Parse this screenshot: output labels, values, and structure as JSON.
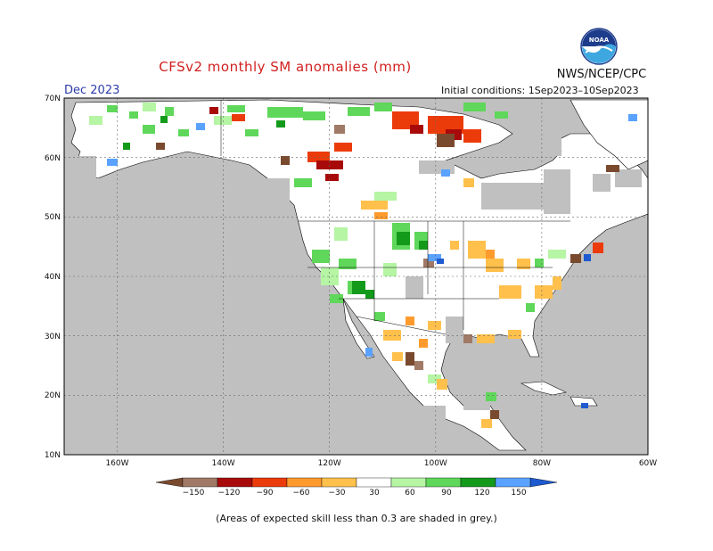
{
  "header": {
    "title": "CFSv2 monthly SM anomalies (mm)",
    "agency": "NWS/NCEP/CPC",
    "month": "Dec 2023",
    "initial_conditions": "Initial conditions: 1Sep2023–10Sep2023",
    "logo_text": "NOAA"
  },
  "map": {
    "lon_labels": [
      "160W",
      "140W",
      "120W",
      "100W",
      "80W",
      "60W"
    ],
    "lat_labels": [
      "70N",
      "60N",
      "50N",
      "40N",
      "30N",
      "20N",
      "10N"
    ],
    "land_color": "#ffffff",
    "ocean_color": "#c0c0c0",
    "low_skill_color": "#c0c0c0"
  },
  "colorbar": {
    "labels": [
      "−150",
      "−120",
      "−90",
      "−60",
      "−30",
      "30",
      "60",
      "90",
      "120",
      "150"
    ],
    "colors": [
      "#7a4a2e",
      "#a07a66",
      "#a80a0a",
      "#ec3b0a",
      "#ff9b2d",
      "#ffc04c",
      "#ffffff",
      "#b5f5a4",
      "#5fd75a",
      "#139a1b",
      "#5aa2ff",
      "#1e5ad0"
    ]
  },
  "footnote": "(Areas of expected skill less than 0.3 are shaded in grey.)"
}
